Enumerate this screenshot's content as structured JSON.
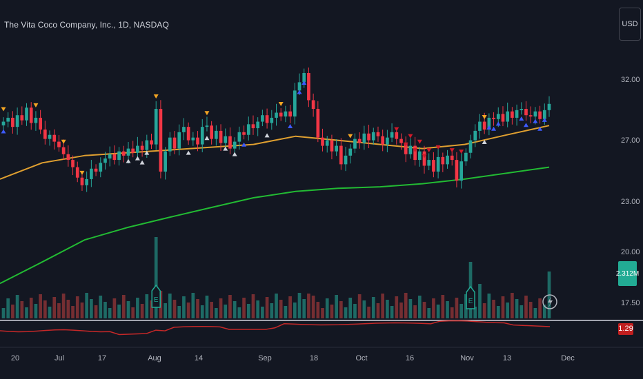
{
  "header": {
    "title": "The Vita Coco Company, Inc., 1D, NASDAQ",
    "currency_button": "USD"
  },
  "colors": {
    "background": "#131722",
    "up": "#26a69a",
    "down": "#f23645",
    "ma_fast": "#e0a030",
    "ma_slow": "#22bb33",
    "indicator_line": "#c62828",
    "arrow_up": "#3d5afe",
    "arrow_white": "#d1d4dc",
    "arrow_orange": "#f5a623",
    "arrow_down": "#d11a2a"
  },
  "price_axis": {
    "ticks": [
      "32.00",
      "27.00",
      "23.00",
      "20.00",
      "17.50"
    ]
  },
  "time_axis": {
    "ticks": [
      "20",
      "Jul",
      "17",
      "Aug",
      "14",
      "Sep",
      "18",
      "Oct",
      "16",
      "Nov",
      "13",
      "Dec"
    ]
  },
  "badges": {
    "volume_value": "2.312M",
    "indicator_value": "1.29"
  },
  "chart_data": {
    "type": "candlestick",
    "title": "The Vita Coco Company, Inc., 1D, NASDAQ",
    "y_scale": "log",
    "y_ticks": [
      17.5,
      20,
      23,
      27,
      32
    ],
    "x_ticks": [
      "20",
      "Jul",
      "17",
      "Aug",
      "14",
      "Sep",
      "18",
      "Oct",
      "16",
      "Nov",
      "13",
      "Dec"
    ],
    "series": [
      {
        "name": "price",
        "close_approx": [
          28.6,
          28.9,
          28.2,
          29.1,
          28.7,
          29.7,
          28.5,
          28.9,
          28.0,
          27.3,
          27.6,
          27.1,
          26.7,
          26.2,
          25.8,
          25.3,
          24.6,
          24.1,
          24.5,
          25.2,
          25.0,
          25.6,
          25.9,
          26.2,
          25.8,
          26.4,
          26.1,
          26.6,
          26.3,
          26.8,
          26.5,
          27.2,
          26.9,
          29.6,
          25.0,
          26.4,
          27.4,
          26.6,
          27.8,
          28.2,
          27.2,
          27.4,
          26.9,
          28.2,
          28.3,
          27.3,
          27.9,
          27.0,
          27.5,
          26.6,
          27.1,
          27.8,
          27.6,
          28.4,
          28.1,
          28.6,
          29.1,
          28.5,
          28.9,
          29.3,
          29.0,
          29.4,
          29.0,
          31.1,
          31.8,
          32.6,
          30.3,
          29.6,
          27.4,
          26.8,
          27.2,
          26.4,
          26.8,
          25.5,
          26.1,
          26.6,
          27.3,
          27.0,
          27.7,
          27.2,
          27.8,
          27.5,
          26.9,
          27.4,
          27.8,
          27.3,
          27.0,
          26.2,
          26.8,
          25.8,
          26.4,
          25.4,
          25.8,
          25.0,
          26.0,
          25.5,
          26.1,
          25.8,
          24.4,
          25.7,
          26.3,
          27.2,
          27.9,
          28.6,
          28.0,
          28.9,
          28.8,
          29.2,
          28.6,
          29.4,
          28.9,
          29.5,
          29.6,
          29.1,
          29.0,
          29.4,
          28.8,
          29.5,
          30.0
        ]
      },
      {
        "name": "MA (fast)",
        "values_approx": [
          24.5,
          25.6,
          26.1,
          26.3,
          26.5,
          26.7,
          26.9,
          27.5,
          27.2,
          26.9,
          26.6,
          26.9,
          27.6,
          28.3
        ]
      },
      {
        "name": "MA (slow)",
        "values_approx": [
          18.5,
          19.6,
          20.8,
          21.5,
          22.1,
          22.7,
          23.3,
          23.7,
          23.9,
          24.0,
          24.2,
          24.5,
          24.9,
          25.3
        ]
      }
    ],
    "volume": {
      "last_value": "2.312M"
    },
    "indicator": {
      "last_value": 1.29
    },
    "grid": false,
    "legend": "none"
  }
}
